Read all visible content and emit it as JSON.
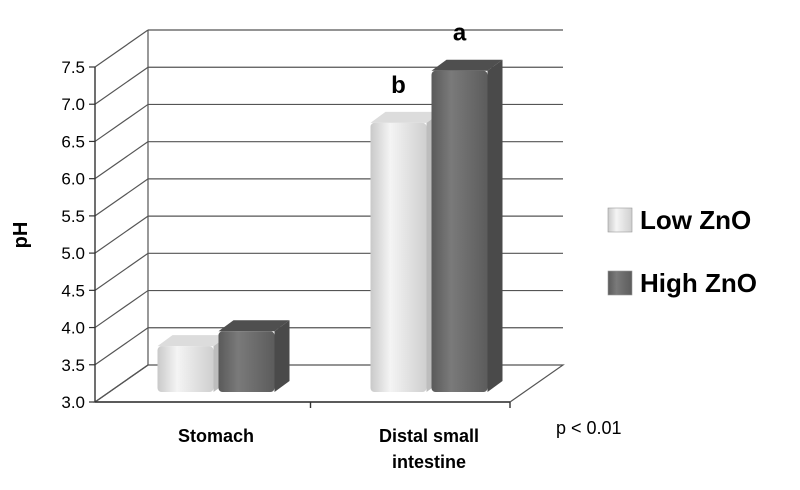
{
  "chart_data": {
    "type": "bar",
    "title": "",
    "xlabel": "",
    "ylabel": "pH",
    "ylim": [
      3.0,
      7.5
    ],
    "yticks": [
      "3.0",
      "3.5",
      "4.0",
      "4.5",
      "5.0",
      "5.5",
      "6.0",
      "6.5",
      "7.0",
      "7.5"
    ],
    "categories": [
      [
        "Stomach"
      ],
      [
        "Distal small",
        "intestine"
      ]
    ],
    "series": [
      {
        "name": "Low ZnO",
        "color": "#e6e6e6",
        "values": [
          3.75,
          6.75
        ]
      },
      {
        "name": "High ZnO",
        "color": "#6e6e6e",
        "values": [
          3.95,
          7.45
        ]
      }
    ],
    "annotations": [
      {
        "category": 1,
        "series": 0,
        "text": "b"
      },
      {
        "category": 1,
        "series": 1,
        "text": "a"
      }
    ],
    "note": "p < 0.01",
    "grid": true,
    "legend": "right"
  }
}
